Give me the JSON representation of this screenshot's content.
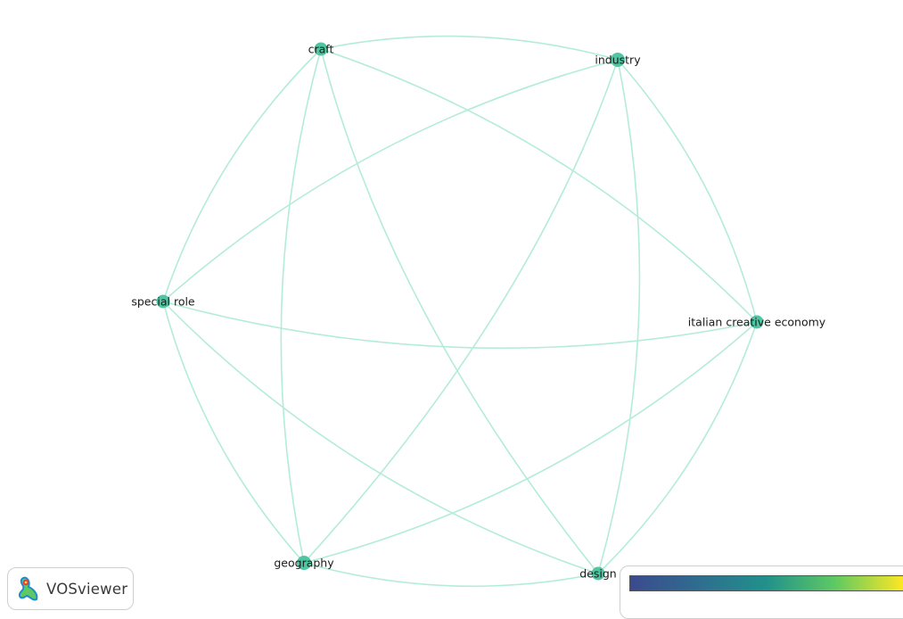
{
  "network": {
    "nodes": [
      {
        "id": "craft",
        "label": "craft"
      },
      {
        "id": "industry",
        "label": "industry"
      },
      {
        "id": "special_role",
        "label": "special role"
      },
      {
        "id": "italian_creative_economy",
        "label": "italian creative economy"
      },
      {
        "id": "geography",
        "label": "geography"
      },
      {
        "id": "design",
        "label": "design"
      }
    ],
    "edges": [
      [
        "craft",
        "industry"
      ],
      [
        "craft",
        "special_role"
      ],
      [
        "craft",
        "geography"
      ],
      [
        "craft",
        "italian_creative_economy"
      ],
      [
        "craft",
        "design"
      ],
      [
        "industry",
        "special_role"
      ],
      [
        "industry",
        "italian_creative_economy"
      ],
      [
        "industry",
        "geography"
      ],
      [
        "industry",
        "design"
      ],
      [
        "special_role",
        "italian_creative_economy"
      ],
      [
        "special_role",
        "geography"
      ],
      [
        "special_role",
        "design"
      ],
      [
        "italian_creative_economy",
        "geography"
      ],
      [
        "italian_creative_economy",
        "design"
      ],
      [
        "geography",
        "design"
      ]
    ],
    "node_color": "#4fc6a1",
    "edge_color": "#b3ecd8"
  },
  "logo": {
    "text": "VOSviewer",
    "icon": "vosviewer-logo-icon"
  },
  "color_scale": {
    "colors": [
      "#3b4a8f",
      "#21918c",
      "#5ec962",
      "#fde725"
    ]
  }
}
